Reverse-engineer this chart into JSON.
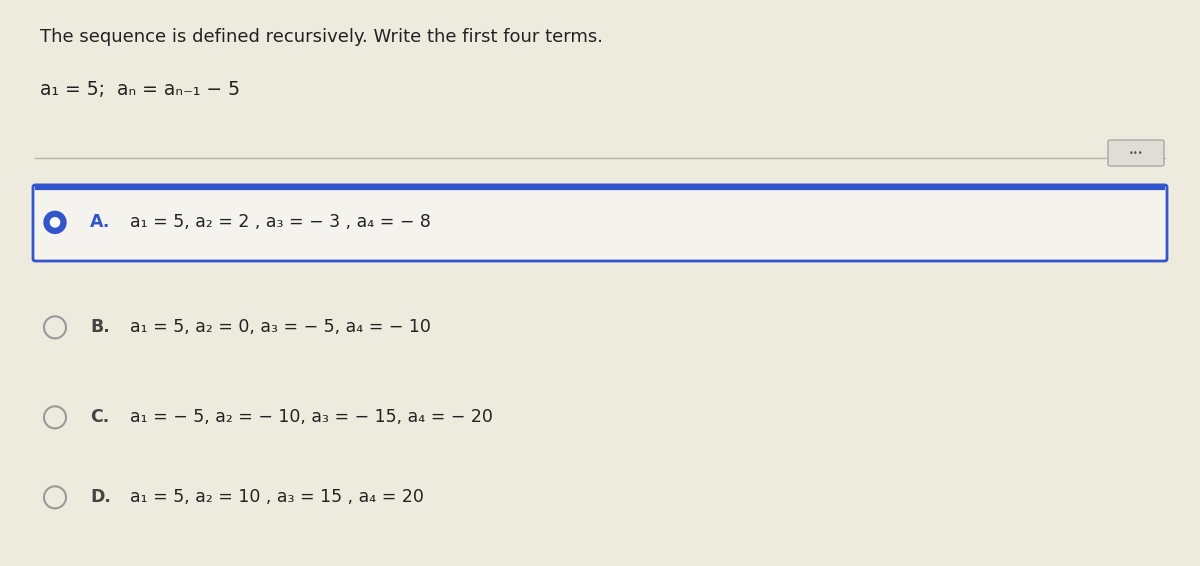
{
  "background_color": "#edeade",
  "title_text": "The sequence is defined recursively. Write the first four terms.",
  "formula_line1": "a₁ = 5;  aₙ = aₙ₋₁ − 5",
  "options": [
    {
      "letter": "A",
      "text": "a₁ = 5, a₂ = 2 , a₃ = − 3 , a₄ = − 8",
      "selected": true
    },
    {
      "letter": "B",
      "text": "a₁ = 5, a₂ = 0, a₃ = − 5, a₄ = − 10",
      "selected": false
    },
    {
      "letter": "C",
      "text": "a₁ = − 5, a₂ = − 10, a₃ = − 15, a₄ = − 20",
      "selected": false
    },
    {
      "letter": "D",
      "text": "a₁ = 5, a₂ = 10 , a₃ = 15 , a₄ = 20",
      "selected": false
    }
  ],
  "selected_box_color": "#3355cc",
  "selected_top_line_color": "#3355cc",
  "selected_fill_color": "#f5f3ee",
  "divider_color": "#b8b5a8",
  "text_color": "#222222",
  "letter_color_selected": "#3355cc",
  "letter_color_unselected": "#444444",
  "radio_selected_color": "#3355cc",
  "radio_unselected_color": "#999999",
  "title_fontsize": 13.0,
  "option_fontsize": 12.5,
  "formula_fontsize": 13.5,
  "dots_button_color": "#e0ddd5",
  "dots_button_border": "#999999"
}
